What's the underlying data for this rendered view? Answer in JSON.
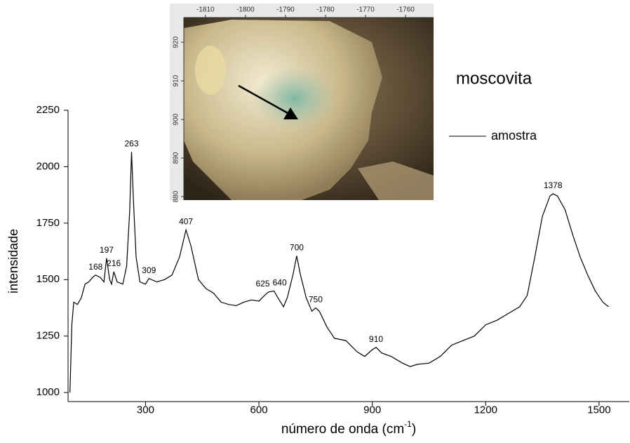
{
  "chart_data": {
    "type": "line",
    "legend_title": "moscovita",
    "xlabel": [
      "número de onda (cm",
      "-1",
      ")"
    ],
    "ylabel": "intensidade",
    "xlim": [
      95,
      1580
    ],
    "ylim": [
      960,
      2250
    ],
    "xticks": [
      300,
      600,
      900,
      1200,
      1500
    ],
    "yticks": [
      1000,
      1250,
      1500,
      1750,
      2000,
      2250
    ],
    "series": [
      {
        "name": "amostra",
        "color": "#000000",
        "x": [
          100,
          105,
          110,
          120,
          130,
          140,
          150,
          160,
          168,
          180,
          190,
          197,
          205,
          210,
          216,
          225,
          240,
          250,
          258,
          263,
          268,
          275,
          285,
          300,
          309,
          330,
          350,
          370,
          390,
          407,
          420,
          440,
          460,
          480,
          500,
          520,
          540,
          560,
          580,
          600,
          615,
          625,
          640,
          650,
          665,
          675,
          690,
          700,
          710,
          725,
          740,
          750,
          760,
          780,
          800,
          830,
          860,
          880,
          900,
          910,
          925,
          950,
          980,
          1000,
          1020,
          1050,
          1080,
          1110,
          1140,
          1170,
          1200,
          1230,
          1260,
          1290,
          1310,
          1330,
          1350,
          1370,
          1378,
          1390,
          1410,
          1430,
          1450,
          1470,
          1490,
          1510,
          1525
        ],
        "values": [
          1000,
          1300,
          1400,
          1390,
          1420,
          1480,
          1490,
          1510,
          1520,
          1510,
          1490,
          1595,
          1500,
          1480,
          1535,
          1490,
          1480,
          1560,
          1800,
          2065,
          1850,
          1600,
          1490,
          1480,
          1505,
          1490,
          1500,
          1520,
          1600,
          1720,
          1650,
          1500,
          1460,
          1440,
          1400,
          1390,
          1385,
          1400,
          1410,
          1405,
          1430,
          1445,
          1450,
          1420,
          1380,
          1420,
          1520,
          1605,
          1520,
          1420,
          1360,
          1375,
          1360,
          1290,
          1240,
          1230,
          1180,
          1160,
          1190,
          1200,
          1175,
          1160,
          1130,
          1115,
          1125,
          1130,
          1160,
          1210,
          1230,
          1250,
          1300,
          1320,
          1350,
          1380,
          1430,
          1600,
          1780,
          1870,
          1880,
          1870,
          1810,
          1700,
          1600,
          1520,
          1450,
          1400,
          1380
        ]
      }
    ],
    "annotations": [
      {
        "label": "168",
        "x": 168,
        "y": 1520
      },
      {
        "label": "197",
        "x": 197,
        "y": 1595
      },
      {
        "label": "216",
        "x": 216,
        "y": 1535
      },
      {
        "label": "263",
        "x": 263,
        "y": 2065
      },
      {
        "label": "309",
        "x": 309,
        "y": 1505
      },
      {
        "label": "407",
        "x": 407,
        "y": 1720
      },
      {
        "label": "625",
        "x": 625,
        "y": 1445
      },
      {
        "label": "640",
        "x": 640,
        "y": 1450
      },
      {
        "label": "700",
        "x": 700,
        "y": 1605
      },
      {
        "label": "750",
        "x": 750,
        "y": 1375
      },
      {
        "label": "910",
        "x": 910,
        "y": 1200
      },
      {
        "label": "1378",
        "x": 1378,
        "y": 1880
      }
    ],
    "inset": {
      "xlim": [
        -1815.4,
        -1753
      ],
      "ylim": [
        926.4,
        879.1
      ],
      "xticks": [
        -1810,
        -1800,
        -1790,
        -1780,
        -1770,
        -1760
      ],
      "yticks": [
        920,
        910,
        900,
        890,
        880
      ]
    }
  }
}
